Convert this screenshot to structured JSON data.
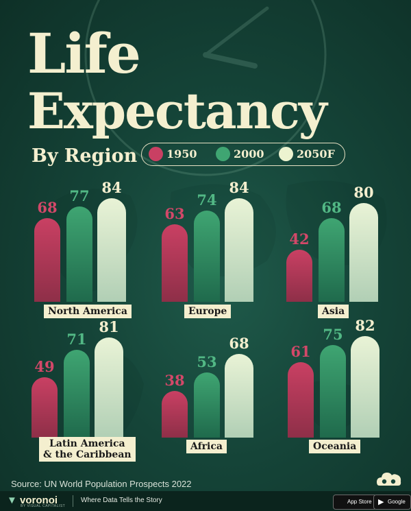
{
  "title_line1": "Life",
  "title_line2": "Expectancy",
  "subtitle": "By Region",
  "source": "Source: UN World Population Prospects 2022",
  "colors": {
    "bg": "#154438",
    "s1950": "#c94063",
    "s2000": "#3fa572",
    "s2050": "#e9f3d6",
    "cream": "#f4efcf"
  },
  "footer": {
    "brand": "voronoi",
    "brand_sub": "BY VISUAL CAPITALIST",
    "tagline": "Where Data Tells the Story",
    "app_store": "App Store",
    "google_play": "Google Play"
  },
  "chart_data": {
    "type": "bar",
    "title": "Life Expectancy By Region",
    "legend": [
      "1950",
      "2000",
      "2050F"
    ],
    "legend_position": "top",
    "categories": [
      "North America",
      "Europe",
      "Asia",
      "Latin America & the Caribbean",
      "Africa",
      "Oceania"
    ],
    "category_lines": [
      [
        "North America"
      ],
      [
        "Europe"
      ],
      [
        "Asia"
      ],
      [
        "Latin America",
        "& the Caribbean"
      ],
      [
        "Africa"
      ],
      [
        "Oceania"
      ]
    ],
    "series": [
      {
        "name": "1950",
        "values": [
          68,
          63,
          42,
          49,
          38,
          61
        ]
      },
      {
        "name": "2000",
        "values": [
          77,
          74,
          68,
          71,
          53,
          75
        ]
      },
      {
        "name": "2050F",
        "values": [
          84,
          84,
          80,
          81,
          68,
          82
        ]
      }
    ],
    "ylim": [
      0,
      90
    ]
  }
}
